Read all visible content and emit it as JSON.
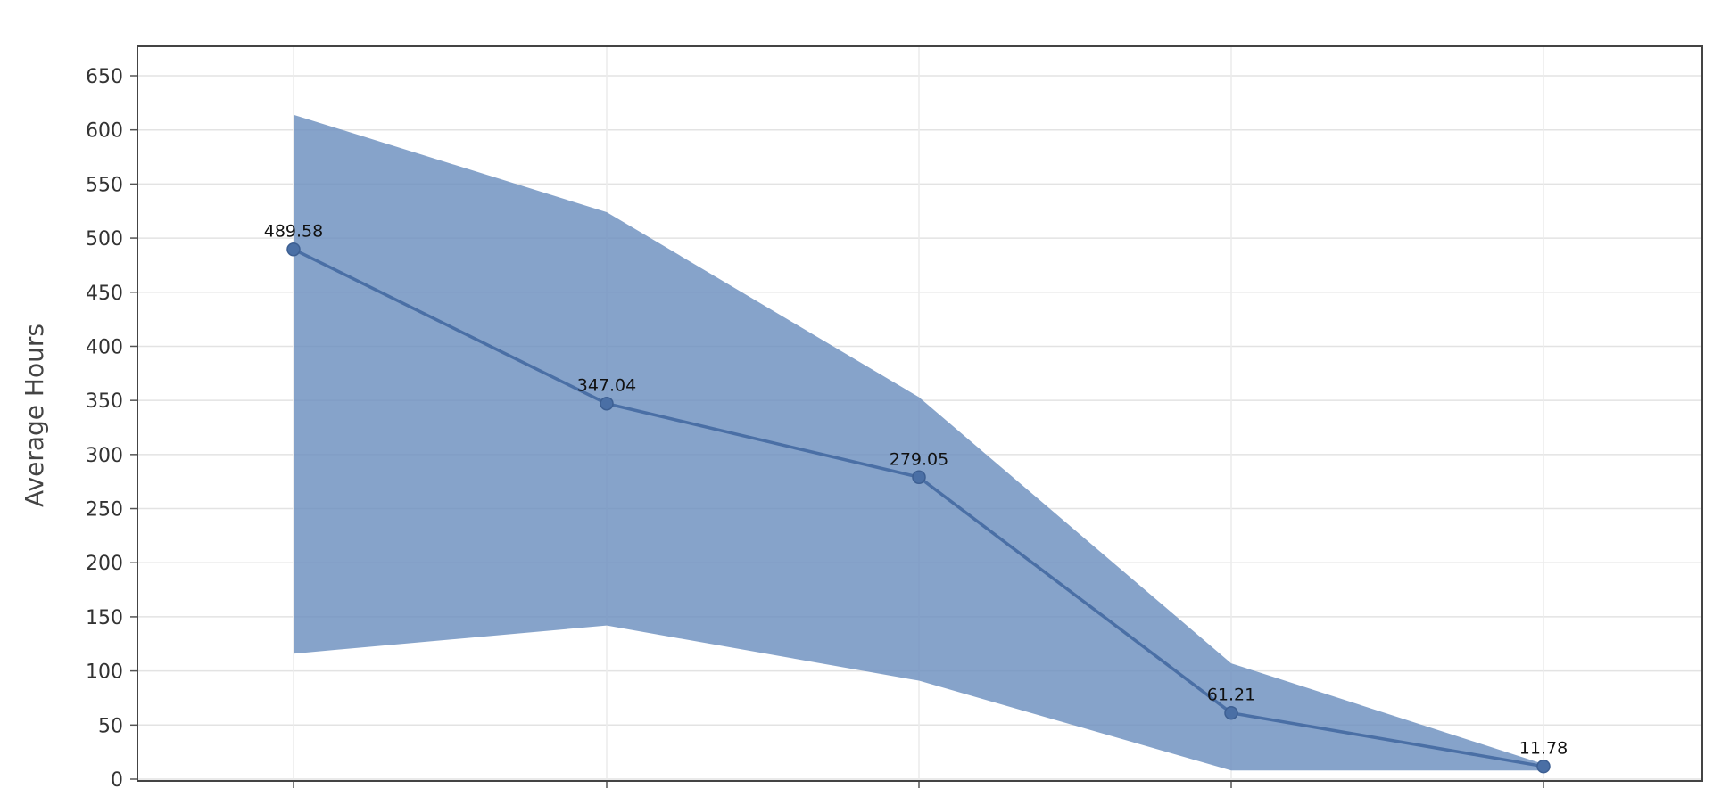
{
  "chart_data": {
    "type": "line",
    "title": "",
    "xlabel": "",
    "ylabel": "Average Hours",
    "ylim": [
      0,
      650
    ],
    "yticks": [
      0,
      50,
      100,
      150,
      200,
      250,
      300,
      350,
      400,
      450,
      500,
      550,
      600,
      650
    ],
    "grid": true,
    "x_tick_labels_visible": false,
    "series": [
      {
        "values": [
          489.58,
          347.04,
          279.05,
          61.21,
          11.78
        ],
        "data_labels": [
          "489.58",
          "347.04",
          "279.05",
          "61.21",
          "11.78"
        ],
        "band_upper": [
          614,
          524,
          353,
          107,
          14
        ],
        "band_lower": [
          116,
          142,
          91,
          8,
          8
        ],
        "line_color": "#4a6fa5",
        "band_color": "#6b8fbe"
      }
    ]
  }
}
